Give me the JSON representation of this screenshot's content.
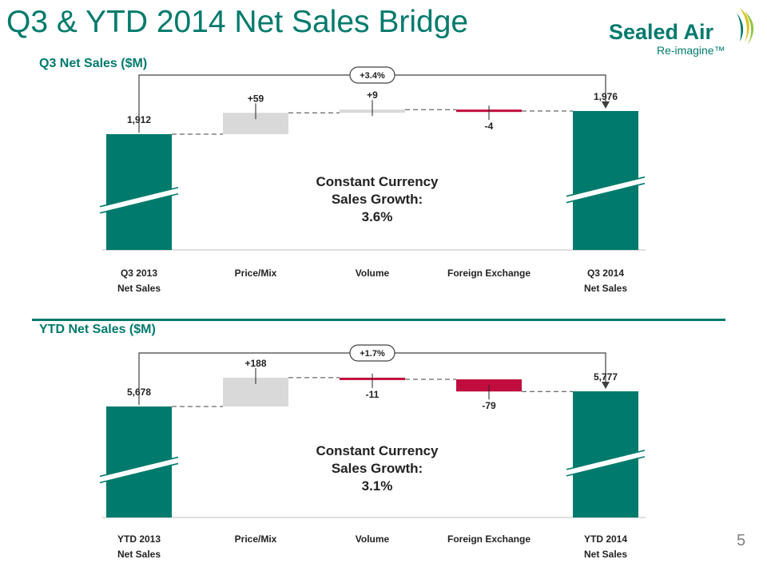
{
  "slide": {
    "title": "Q3 & YTD 2014 Net Sales Bridge",
    "page_number": "5"
  },
  "logo": {
    "brand": "Sealed Air",
    "tagline": "Re-imagine™",
    "colors": {
      "brand_green": "#007a6c",
      "sail_yellow": "#d9c21f",
      "sail_green": "#8dc63f"
    }
  },
  "colors": {
    "total_bar": "#007a6c",
    "increase_bar": "#d9d9d9",
    "decrease_bar": "#c00d3d",
    "connector": "#404040",
    "title_text": "#007a6c"
  },
  "chart_data": [
    {
      "type": "waterfall",
      "title": "Q3 Net Sales ($M)",
      "categories": [
        [
          "Q3 2013",
          "Net Sales"
        ],
        [
          "Price/Mix"
        ],
        [
          "Volume"
        ],
        [
          "Foreign Exchange"
        ],
        [
          "Q3 2014",
          "Net Sales"
        ]
      ],
      "values": [
        1912,
        59,
        9,
        -4,
        1976
      ],
      "value_labels": [
        "1,912",
        "+59",
        "+9",
        "-4",
        "1,976"
      ],
      "measures": [
        "total",
        "delta",
        "delta",
        "delta",
        "total"
      ],
      "axis_break": true,
      "overall_change_label": "+3.4%",
      "annotation": [
        "Constant Currency",
        "Sales Growth:",
        "3.6%"
      ]
    },
    {
      "type": "waterfall",
      "title": "YTD Net Sales ($M)",
      "categories": [
        [
          "YTD 2013",
          "Net Sales"
        ],
        [
          "Price/Mix"
        ],
        [
          "Volume"
        ],
        [
          "Foreign Exchange"
        ],
        [
          "YTD 2014",
          "Net Sales"
        ]
      ],
      "values": [
        5678,
        188,
        -11,
        -79,
        5777
      ],
      "value_labels": [
        "5,678",
        "+188",
        "-11",
        "-79",
        "5,777"
      ],
      "measures": [
        "total",
        "delta",
        "delta",
        "delta",
        "total"
      ],
      "axis_break": true,
      "overall_change_label": "+1.7%",
      "annotation": [
        "Constant Currency",
        "Sales Growth:",
        "3.1%"
      ]
    }
  ]
}
